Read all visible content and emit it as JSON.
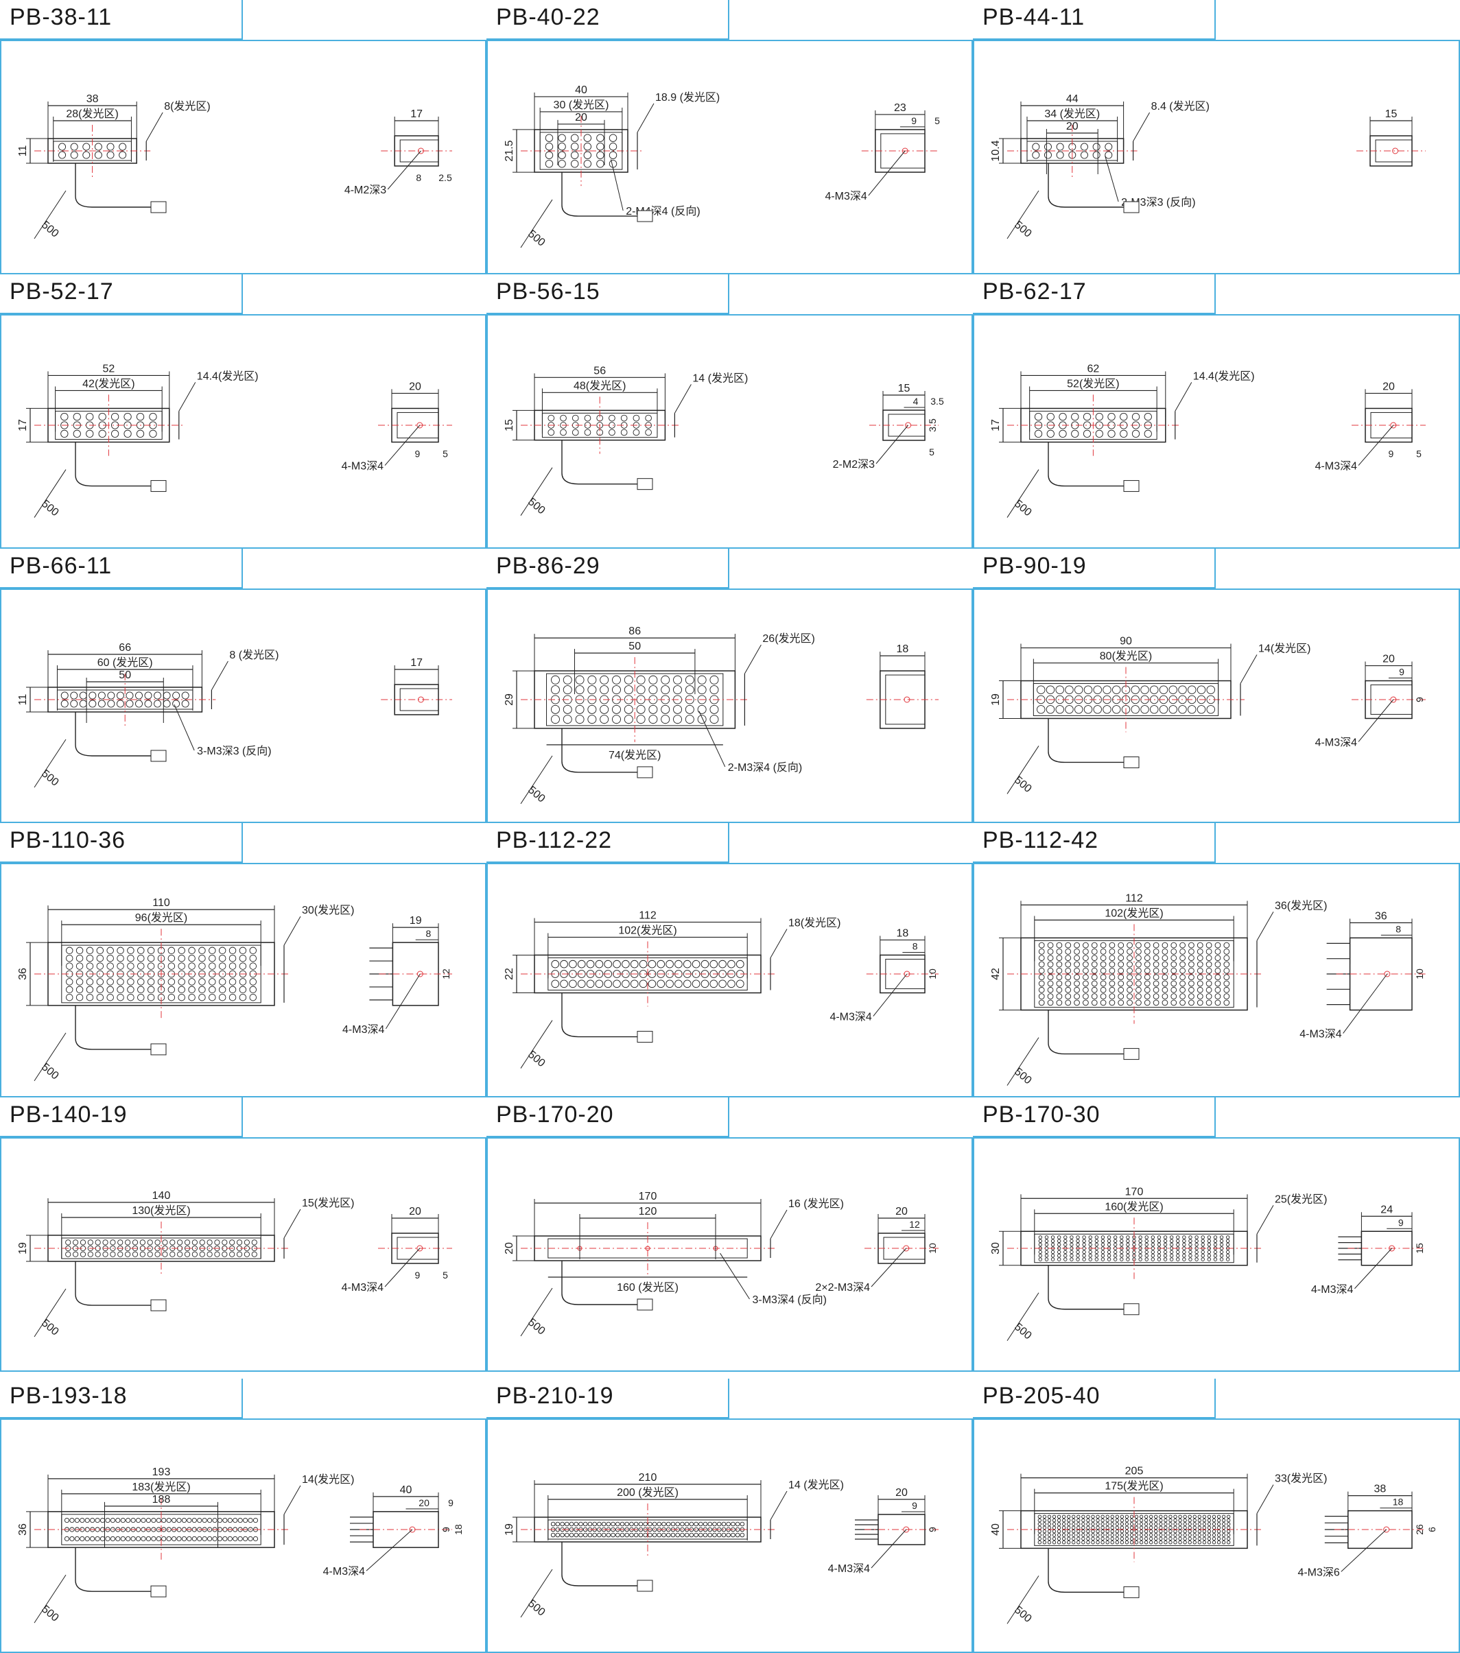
{
  "accent_color": "#4ab0df",
  "dim_color": "#222222",
  "centerline_color": "#e0353b",
  "cells": [
    {
      "model": "PB-38-11",
      "len": "38",
      "area": "28(发光区)",
      "h": "11",
      "ha": "8(发光区)",
      "depth": "17",
      "holes": "4-M2深3",
      "cable": "500",
      "s1": "8",
      "s2": "2.5",
      "rows": 2,
      "cols": 6,
      "hs": "large"
    },
    {
      "model": "PB-40-22",
      "len": "40",
      "area": "30 (发光区)",
      "mid": "20",
      "h": "21.5",
      "ha": "18.9 (发光区)",
      "depth": "23",
      "d1": "9",
      "d2": "5",
      "holes": "4-M3深4",
      "rev": "2-M4深4 (反向)",
      "cable": "500",
      "rows": 4,
      "cols": 6,
      "hs": "large"
    },
    {
      "model": "PB-44-11",
      "len": "44",
      "area": "34 (发光区)",
      "mid": "20",
      "h": "10.4",
      "ha": "8.4 (发光区)",
      "depth": "15",
      "rev": "2-M3深3 (反向)",
      "cable": "500",
      "rows": 2,
      "cols": 7,
      "hs": "large"
    },
    {
      "model": "PB-52-17",
      "len": "52",
      "area": "42(发光区)",
      "h": "17",
      "ha": "14.4(发光区)",
      "depth": "20",
      "holes": "4-M3深4",
      "cable": "500",
      "s1": "9",
      "s2": "5",
      "rows": 3,
      "cols": 8,
      "hs": "med"
    },
    {
      "model": "PB-56-15",
      "len": "56",
      "area": "48(发光区)",
      "h": "15",
      "ha": "14 (发光区)",
      "depth": "15",
      "d1": "4",
      "d2": "3.5",
      "d3": "3.5",
      "holes": "2-M2深3",
      "cable": "500",
      "s2": "5",
      "rows": 3,
      "cols": 9,
      "hs": "med"
    },
    {
      "model": "PB-62-17",
      "len": "62",
      "area": "52(发光区)",
      "h": "17",
      "ha": "14.4(发光区)",
      "depth": "20",
      "holes": "4-M3深4",
      "cable": "500",
      "s1": "9",
      "s2": "5",
      "rows": 3,
      "cols": 10,
      "hs": "med"
    },
    {
      "model": "PB-66-11",
      "len": "66",
      "area": "60 (发光区)",
      "mid": "50",
      "h": "11",
      "ha": "8 (发光区)",
      "depth": "17",
      "rev": "3-M3深3 (反向)",
      "cable": "500",
      "rows": 2,
      "cols": 14,
      "hs": "large"
    },
    {
      "model": "PB-86-29",
      "len": "86",
      "mid": "50",
      "area2": "74(发光区)",
      "h": "29",
      "ha": "26(发光区)",
      "depth": "18",
      "rev": "2-M3深4 (反向)",
      "cable": "500",
      "rows": 5,
      "cols": 14,
      "hs": "med"
    },
    {
      "model": "PB-90-19",
      "len": "90",
      "area": "80(发光区)",
      "h": "19",
      "ha": "14(发光区)",
      "depth": "20",
      "d1": "9",
      "d3": "9",
      "holes": "4-M3深4",
      "cable": "500",
      "rows": 3,
      "cols": 19,
      "hs": "med"
    },
    {
      "model": "PB-110-36",
      "len": "110",
      "area": "96(发光区)",
      "h": "36",
      "ha": "30(发光区)",
      "depth": "19",
      "d1": "8",
      "d3": "12",
      "holes": "4-M3深4",
      "cable": "500",
      "rows": 7,
      "cols": 19,
      "hs": "small"
    },
    {
      "model": "PB-112-22",
      "len": "112",
      "area": "102(发光区)",
      "h": "22",
      "ha": "18(发光区)",
      "depth": "18",
      "d1": "8",
      "d3": "10",
      "holes": "4-M3深4",
      "cable": "500",
      "rows": 3,
      "cols": 22,
      "hs": "med"
    },
    {
      "model": "PB-112-42",
      "len": "112",
      "area": "102(发光区)",
      "h": "42",
      "ha": "36(发光区)",
      "depth": "36",
      "d1": "8",
      "d3": "10",
      "holes": "4-M3深4",
      "cable": "500",
      "rows": 10,
      "cols": 22,
      "hs": "small"
    },
    {
      "model": "PB-140-19",
      "len": "140",
      "area": "130(发光区)",
      "h": "19",
      "ha": "15(发光区)",
      "depth": "20",
      "holes": "4-M3深4",
      "cable": "500",
      "s1": "9",
      "s2": "5",
      "rows": 3,
      "cols": 26,
      "hs": "med"
    },
    {
      "model": "PB-170-20",
      "len": "170",
      "mid": "120",
      "area2": "160 (发光区)",
      "h": "20",
      "ha": "16 (发光区)",
      "depth": "20",
      "d1": "12",
      "d3": "10",
      "holes": "2×2-M3深4",
      "rev": "3-M3深4 (反向)",
      "cable": "500",
      "rows": 0,
      "cols": 0,
      "hs": "none"
    },
    {
      "model": "PB-170-30",
      "len": "170",
      "area": "160(发光区)",
      "h": "30",
      "ha": "25(发光区)",
      "depth": "24",
      "d1": "9",
      "d3": "15",
      "holes": "4-M3深4",
      "cable": "500",
      "rows": 7,
      "cols": 31,
      "hs": "small"
    },
    {
      "model": "PB-193-18",
      "len": "193",
      "mid": "188",
      "area": "183(发光区)",
      "h": "36",
      "ha": "14(发光区)",
      "depth": "40",
      "d1": "20",
      "d2": "9",
      "d3": "9",
      "d4": "18",
      "holes": "4-M3深4",
      "cable": "500",
      "rows": 3,
      "cols": 38,
      "hs": "tiny"
    },
    {
      "model": "PB-210-19",
      "len": "210",
      "area": "200 (发光区)",
      "h": "19",
      "ha": "14 (发光区)",
      "depth": "20",
      "d1": "9",
      "d3": "9",
      "holes": "4-M3深4",
      "cable": "500",
      "rows": 3,
      "cols": 42,
      "hs": "tiny"
    },
    {
      "model": "PB-205-40",
      "len": "205",
      "area": "175(发光区)",
      "h": "40",
      "ha": "33(发光区)",
      "depth": "38",
      "d1": "18",
      "d3": "26",
      "d4": "6",
      "holes": "4-M3深6",
      "cable": "500",
      "rows": 8,
      "cols": 40,
      "hs": "tiny"
    }
  ]
}
